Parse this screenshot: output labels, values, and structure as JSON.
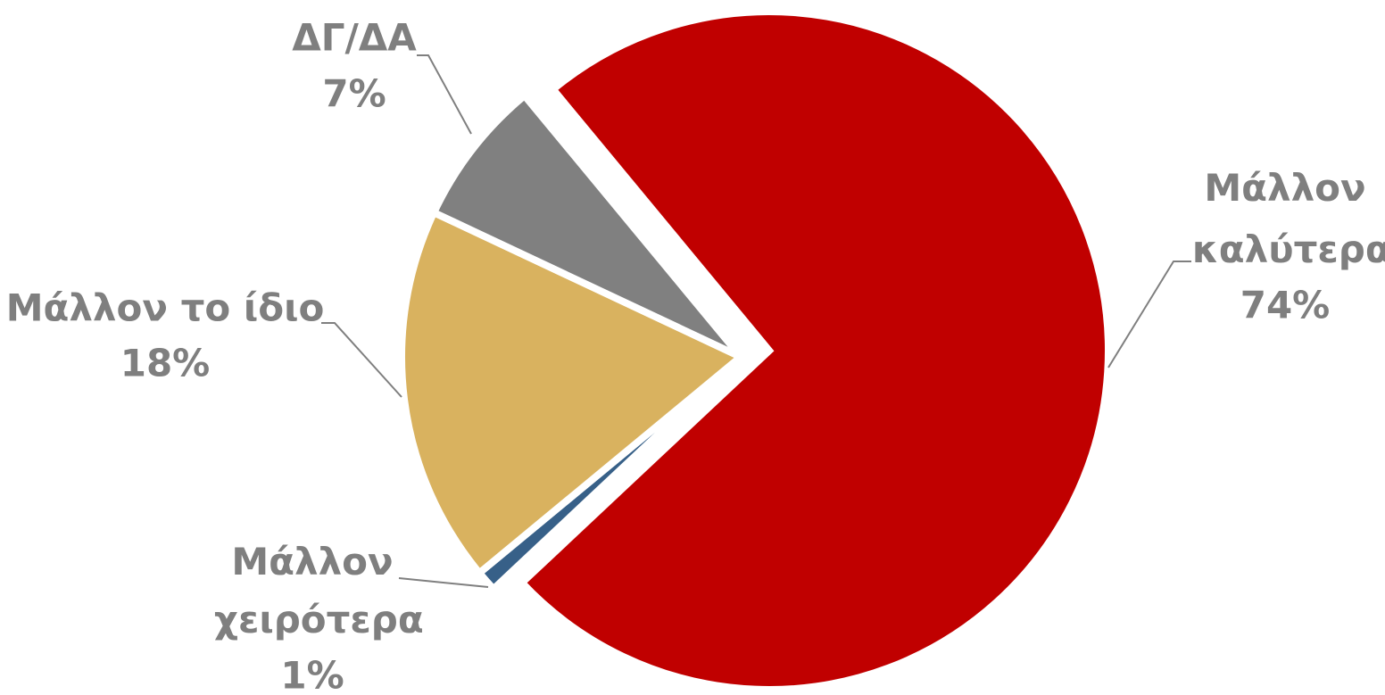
{
  "chart_data": {
    "type": "pie",
    "categories": [
      "Μάλλον καλύτερα",
      "Μάλλον χειρότερα",
      "Μάλλον το ίδιο",
      "ΔΓ/ΔΑ"
    ],
    "values": [
      74,
      1,
      18,
      7
    ],
    "value_labels": [
      "74%",
      "1%",
      "18%",
      "7%"
    ],
    "colors": [
      "#c00000",
      "#376088",
      "#d9b25f",
      "#808080"
    ]
  }
}
